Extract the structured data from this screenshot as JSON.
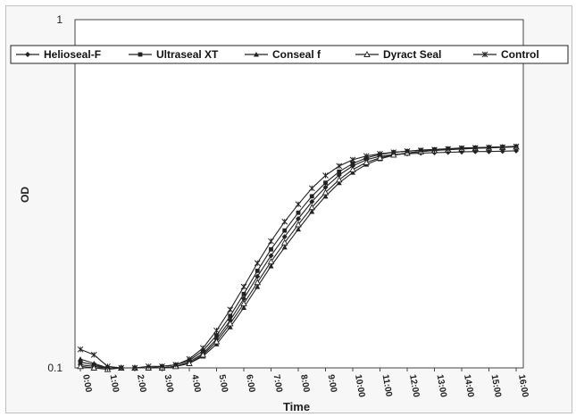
{
  "chart_data": {
    "type": "line",
    "title": "",
    "xlabel": "Time",
    "ylabel": "OD",
    "yscale": "log",
    "ylim": [
      0.1,
      1
    ],
    "ytick_labels": [
      "0.1",
      "1"
    ],
    "x_ticks": [
      "0:00",
      "1:00",
      "2:00",
      "3:00",
      "4:00",
      "5:00",
      "6:00",
      "7:00",
      "8:00",
      "9:00",
      "10:00",
      "11:00",
      "12:00",
      "13:00",
      "14:00",
      "15:00",
      "16:00"
    ],
    "x": [
      "0:00",
      "0:30",
      "1:00",
      "1:30",
      "2:00",
      "2:30",
      "3:00",
      "3:30",
      "4:00",
      "4:30",
      "5:00",
      "5:30",
      "6:00",
      "6:30",
      "7:00",
      "7:30",
      "8:00",
      "8:30",
      "9:00",
      "9:30",
      "10:00",
      "10:30",
      "11:00",
      "11:30",
      "12:00",
      "12:30",
      "13:00",
      "13:30",
      "14:00",
      "14:30",
      "15:00",
      "15:30",
      "16:00"
    ],
    "grid": false,
    "legend_position": "top",
    "series": [
      {
        "name": "Helioseal-F",
        "marker": "diamond",
        "color": "#222222",
        "values": [
          0.102,
          0.101,
          0.1,
          0.1,
          0.1,
          0.1,
          0.1,
          0.101,
          0.104,
          0.11,
          0.121,
          0.137,
          0.158,
          0.183,
          0.21,
          0.238,
          0.268,
          0.3,
          0.33,
          0.358,
          0.38,
          0.396,
          0.405,
          0.41,
          0.412,
          0.414,
          0.415,
          0.416,
          0.417,
          0.418,
          0.418,
          0.419,
          0.42
        ]
      },
      {
        "name": "Ultraseal XT",
        "marker": "square",
        "color": "#222222",
        "values": [
          0.104,
          0.102,
          0.1,
          0.1,
          0.1,
          0.1,
          0.101,
          0.102,
          0.105,
          0.112,
          0.124,
          0.141,
          0.163,
          0.19,
          0.219,
          0.248,
          0.279,
          0.311,
          0.34,
          0.366,
          0.386,
          0.401,
          0.41,
          0.416,
          0.419,
          0.422,
          0.424,
          0.426,
          0.428,
          0.429,
          0.43,
          0.431,
          0.432
        ]
      },
      {
        "name": "Conseal f",
        "marker": "triangle",
        "color": "#222222",
        "values": [
          0.106,
          0.103,
          0.1,
          0.1,
          0.1,
          0.1,
          0.1,
          0.101,
          0.103,
          0.108,
          0.117,
          0.131,
          0.149,
          0.171,
          0.196,
          0.222,
          0.25,
          0.281,
          0.311,
          0.34,
          0.364,
          0.384,
          0.398,
          0.408,
          0.414,
          0.418,
          0.421,
          0.424,
          0.426,
          0.428,
          0.43,
          0.431,
          0.433
        ]
      },
      {
        "name": "Dyract Seal",
        "marker": "triangle-open",
        "color": "#222222",
        "values": [
          0.101,
          0.1,
          0.099,
          0.1,
          0.1,
          0.1,
          0.1,
          0.101,
          0.103,
          0.109,
          0.119,
          0.134,
          0.153,
          0.176,
          0.202,
          0.229,
          0.258,
          0.289,
          0.319,
          0.347,
          0.371,
          0.389,
          0.401,
          0.409,
          0.414,
          0.418,
          0.421,
          0.423,
          0.425,
          0.427,
          0.428,
          0.43,
          0.431
        ]
      },
      {
        "name": "Control",
        "marker": "star",
        "color": "#222222",
        "values": [
          0.113,
          0.109,
          0.101,
          0.1,
          0.1,
          0.101,
          0.101,
          0.102,
          0.106,
          0.114,
          0.128,
          0.147,
          0.171,
          0.2,
          0.231,
          0.263,
          0.295,
          0.328,
          0.357,
          0.38,
          0.396,
          0.406,
          0.412,
          0.416,
          0.419,
          0.421,
          0.423,
          0.425,
          0.427,
          0.428,
          0.429,
          0.43,
          0.432
        ]
      }
    ]
  }
}
